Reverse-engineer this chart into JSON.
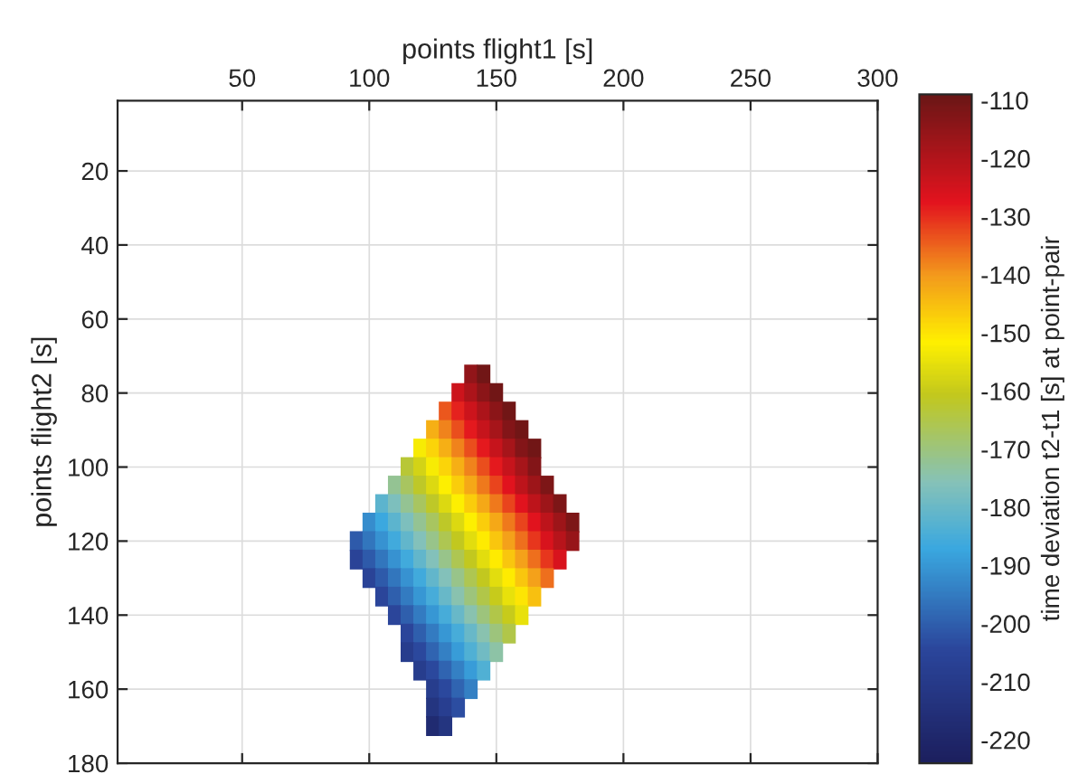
{
  "chart_data": {
    "type": "scatter",
    "xlabel": "points flight1 [s]",
    "ylabel": "points flight2 [s]",
    "clabel": "time deviation t2-t1 [s] at point-pair",
    "xlim": [
      1,
      300
    ],
    "xticks": [
      50,
      100,
      150,
      200,
      250,
      300
    ],
    "ylim": [
      180,
      1
    ],
    "yticks": [
      20,
      40,
      60,
      80,
      100,
      120,
      140,
      160,
      180
    ],
    "clim": [
      -224,
      -109
    ],
    "cticks": [
      -110,
      -120,
      -130,
      -140,
      -150,
      -160,
      -170,
      -180,
      -190,
      -200,
      -210,
      -220
    ],
    "grid": true,
    "marker": "square",
    "x": [
      140,
      145,
      135,
      140,
      145,
      150,
      130,
      135,
      140,
      145,
      150,
      155,
      125,
      130,
      135,
      140,
      145,
      150,
      155,
      160,
      120,
      125,
      130,
      135,
      140,
      145,
      150,
      155,
      160,
      165,
      115,
      120,
      125,
      130,
      135,
      140,
      145,
      150,
      155,
      160,
      165,
      110,
      115,
      120,
      125,
      130,
      135,
      140,
      145,
      150,
      155,
      160,
      165,
      170,
      105,
      110,
      115,
      120,
      125,
      130,
      135,
      140,
      145,
      150,
      155,
      160,
      165,
      170,
      175,
      100,
      105,
      110,
      115,
      120,
      125,
      130,
      135,
      140,
      145,
      150,
      155,
      160,
      165,
      170,
      175,
      180,
      95,
      100,
      105,
      110,
      115,
      120,
      125,
      130,
      135,
      140,
      145,
      150,
      155,
      160,
      165,
      170,
      175,
      180,
      95,
      100,
      105,
      110,
      115,
      120,
      125,
      130,
      135,
      140,
      145,
      150,
      155,
      160,
      165,
      170,
      175,
      100,
      105,
      110,
      115,
      120,
      125,
      130,
      135,
      140,
      145,
      150,
      155,
      160,
      165,
      170,
      105,
      110,
      115,
      120,
      125,
      130,
      135,
      140,
      145,
      150,
      155,
      160,
      165,
      110,
      115,
      120,
      125,
      130,
      135,
      140,
      145,
      150,
      155,
      160,
      115,
      120,
      125,
      130,
      135,
      140,
      145,
      150,
      155,
      115,
      120,
      125,
      130,
      135,
      140,
      145,
      150,
      120,
      125,
      130,
      135,
      140,
      145,
      125,
      130,
      135,
      140,
      125,
      130,
      135,
      125,
      130
    ],
    "values": [
      75,
      75,
      80,
      80,
      80,
      80,
      85,
      85,
      85,
      85,
      85,
      85,
      90,
      90,
      90,
      90,
      90,
      90,
      90,
      90,
      95,
      95,
      95,
      95,
      95,
      95,
      95,
      95,
      95,
      95,
      100,
      100,
      100,
      100,
      100,
      100,
      100,
      100,
      100,
      100,
      100,
      105,
      105,
      105,
      105,
      105,
      105,
      105,
      105,
      105,
      105,
      105,
      105,
      105,
      110,
      110,
      110,
      110,
      110,
      110,
      110,
      110,
      110,
      110,
      110,
      110,
      110,
      110,
      110,
      115,
      115,
      115,
      115,
      115,
      115,
      115,
      115,
      115,
      115,
      115,
      115,
      115,
      115,
      115,
      115,
      115,
      120,
      120,
      120,
      120,
      120,
      120,
      120,
      120,
      120,
      120,
      120,
      120,
      120,
      120,
      120,
      120,
      120,
      120,
      125,
      125,
      125,
      125,
      125,
      125,
      125,
      125,
      125,
      125,
      125,
      125,
      125,
      125,
      125,
      125,
      125,
      130,
      130,
      130,
      130,
      130,
      130,
      130,
      130,
      130,
      130,
      130,
      130,
      130,
      130,
      130,
      135,
      135,
      135,
      135,
      135,
      135,
      135,
      135,
      135,
      135,
      135,
      135,
      135,
      140,
      140,
      140,
      140,
      140,
      140,
      140,
      140,
      140,
      140,
      140,
      145,
      145,
      145,
      145,
      145,
      145,
      145,
      145,
      145,
      150,
      150,
      150,
      150,
      150,
      150,
      150,
      150,
      155,
      155,
      155,
      155,
      155,
      155,
      160,
      160,
      160,
      160,
      165,
      165,
      165,
      170,
      170
    ],
    "cvalues": [
      -115,
      -110,
      -124,
      -119,
      -114,
      -110,
      -134,
      -129,
      -124,
      -119,
      -114,
      -110,
      -143,
      -138,
      -133,
      -128,
      -123,
      -118,
      -113,
      -110,
      -153,
      -148,
      -143,
      -138,
      -133,
      -128,
      -123,
      -118,
      -113,
      -110,
      -163,
      -158,
      -153,
      -148,
      -143,
      -138,
      -133,
      -128,
      -123,
      -118,
      -113,
      -172,
      -167,
      -162,
      -157,
      -152,
      -147,
      -142,
      -137,
      -132,
      -127,
      -122,
      -117,
      -112,
      -182,
      -177,
      -172,
      -167,
      -162,
      -157,
      -152,
      -147,
      -142,
      -137,
      -132,
      -127,
      -122,
      -117,
      -112,
      -192,
      -187,
      -182,
      -177,
      -172,
      -167,
      -162,
      -157,
      -152,
      -147,
      -142,
      -137,
      -132,
      -127,
      -122,
      -117,
      -112,
      -201,
      -196,
      -191,
      -186,
      -181,
      -176,
      -171,
      -166,
      -161,
      -156,
      -151,
      -146,
      -141,
      -136,
      -131,
      -126,
      -121,
      -116,
      -206,
      -201,
      -196,
      -191,
      -186,
      -181,
      -176,
      -171,
      -166,
      -161,
      -156,
      -151,
      -146,
      -141,
      -136,
      -131,
      -126,
      -206,
      -201,
      -196,
      -191,
      -186,
      -181,
      -176,
      -171,
      -166,
      -161,
      -156,
      -151,
      -146,
      -141,
      -136,
      -205,
      -200,
      -195,
      -190,
      -185,
      -180,
      -175,
      -170,
      -165,
      -160,
      -155,
      -150,
      -145,
      -205,
      -200,
      -195,
      -190,
      -185,
      -180,
      -175,
      -170,
      -165,
      -160,
      -155,
      -205,
      -200,
      -195,
      -190,
      -185,
      -180,
      -175,
      -170,
      -165,
      -209,
      -204,
      -199,
      -194,
      -189,
      -184,
      -179,
      -174,
      -209,
      -204,
      -199,
      -194,
      -189,
      -184,
      -209,
      -204,
      -199,
      -194,
      -213,
      -208,
      -203,
      -218,
      -213
    ]
  }
}
